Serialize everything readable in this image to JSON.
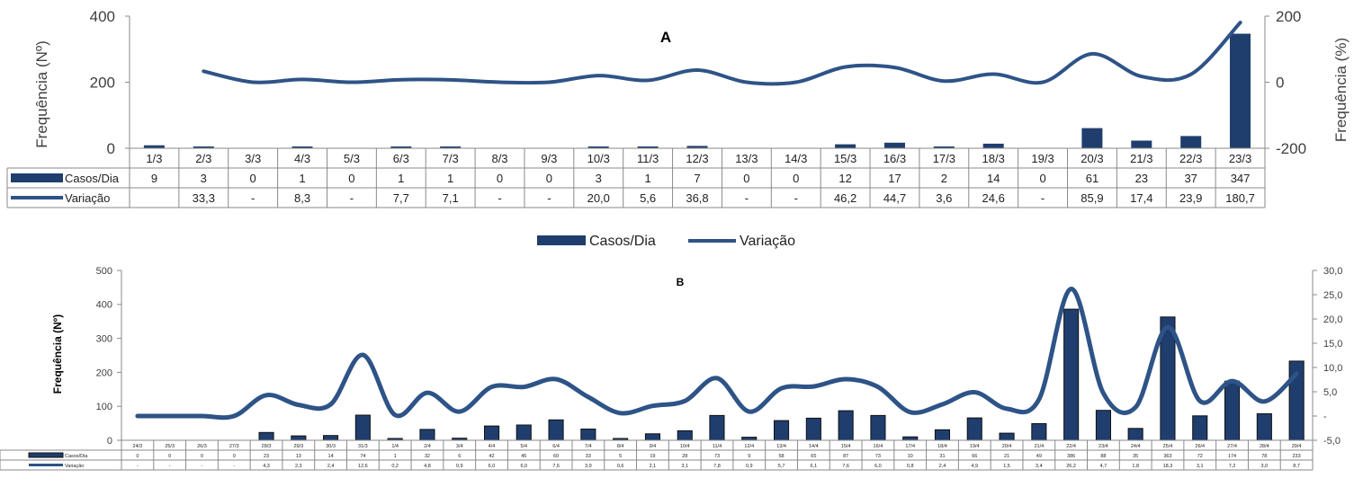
{
  "chart_data": [
    {
      "type": "bar",
      "title": "A",
      "categories": [
        "1/3",
        "2/3",
        "3/3",
        "4/3",
        "5/3",
        "6/3",
        "7/3",
        "8/3",
        "9/3",
        "10/3",
        "11/3",
        "12/3",
        "13/3",
        "14/3",
        "15/3",
        "16/3",
        "17/3",
        "18/3",
        "19/3",
        "20/3",
        "21/3",
        "22/3",
        "23/3"
      ],
      "ylabel": "Frequência (Nº)",
      "y2label": "Frequência (%)",
      "ylim": [
        0,
        400
      ],
      "y2lim": [
        -200,
        200
      ],
      "yticks": [
        "0",
        "200",
        "400"
      ],
      "y2ticks": [
        "-200",
        "0",
        "200"
      ],
      "legend_position": "bottom",
      "series": [
        {
          "name": "Casos/Dia",
          "kind": "bar",
          "axis": "left",
          "color": "#1f3e6e",
          "values": [
            9,
            3,
            0,
            1,
            0,
            1,
            1,
            0,
            0,
            3,
            1,
            7,
            0,
            0,
            12,
            17,
            2,
            14,
            0,
            61,
            23,
            37,
            347
          ],
          "labels": [
            "9",
            "3",
            "0",
            "1",
            "0",
            "1",
            "1",
            "0",
            "0",
            "3",
            "1",
            "7",
            "0",
            "0",
            "12",
            "17",
            "2",
            "14",
            "0",
            "61",
            "23",
            "37",
            "347"
          ]
        },
        {
          "name": "Variação",
          "kind": "line",
          "axis": "right",
          "color": "#2e5387",
          "values": [
            null,
            33.3,
            0,
            8.3,
            0,
            7.7,
            7.1,
            0,
            0,
            20.0,
            5.6,
            36.8,
            0,
            0,
            46.2,
            44.7,
            3.6,
            24.6,
            0,
            85.9,
            17.4,
            23.9,
            180.7
          ],
          "labels": [
            "",
            "33,3",
            "-",
            "8,3",
            "-",
            "7,7",
            "7,1",
            "-",
            "-",
            "20,0",
            "5,6",
            "36,8",
            "-",
            "-",
            "46,2",
            "44,7",
            "3,6",
            "24,6",
            "-",
            "85,9",
            "17,4",
            "23,9",
            "180,7"
          ]
        }
      ]
    },
    {
      "type": "bar",
      "title": "B",
      "categories": [
        "24/3",
        "25/3",
        "26/3",
        "27/3",
        "28/3",
        "29/3",
        "30/3",
        "31/3",
        "1/4",
        "2/4",
        "3/4",
        "4/4",
        "5/4",
        "6/4",
        "7/4",
        "8/4",
        "9/4",
        "10/4",
        "11/4",
        "12/4",
        "13/4",
        "14/4",
        "15/4",
        "16/4",
        "17/4",
        "18/4",
        "19/4",
        "20/4",
        "21/4",
        "22/4",
        "23/4",
        "24/4",
        "25/4",
        "26/4",
        "27/4",
        "28/4",
        "29/4"
      ],
      "ylabel": "Frequência (Nº)",
      "ylim": [
        0,
        500
      ],
      "y2lim": [
        -5,
        30
      ],
      "yticks": [
        "0",
        "100",
        "200",
        "300",
        "400",
        "500"
      ],
      "y2ticks": [
        "-5,0",
        "-",
        "5,0",
        "10,0",
        "15,0",
        "20,0",
        "25,0",
        "30,0"
      ],
      "series": [
        {
          "name": "Casos/Dia",
          "kind": "bar",
          "axis": "left",
          "color": "#1f3e6e",
          "values": [
            0,
            0,
            0,
            0,
            23,
            13,
            14,
            74,
            1,
            32,
            6,
            42,
            45,
            60,
            33,
            5,
            19,
            28,
            73,
            9,
            58,
            65,
            87,
            73,
            10,
            31,
            66,
            21,
            49,
            386,
            88,
            35,
            363,
            72,
            174,
            78,
            233
          ],
          "labels": [
            "0",
            "0",
            "0",
            "0",
            "23",
            "13",
            "14",
            "74",
            "1",
            "32",
            "6",
            "42",
            "45",
            "60",
            "33",
            "5",
            "19",
            "28",
            "73",
            "9",
            "58",
            "65",
            "87",
            "73",
            "10",
            "31",
            "66",
            "21",
            "49",
            "386",
            "88",
            "35",
            "363",
            "72",
            "174",
            "78",
            "233"
          ]
        },
        {
          "name": "Variação",
          "kind": "line",
          "axis": "right",
          "color": "#2e5387",
          "values": [
            0,
            0,
            0,
            0,
            4.3,
            2.3,
            2.4,
            12.6,
            0.2,
            4.8,
            0.9,
            6.0,
            6.0,
            7.6,
            3.9,
            0.6,
            2.1,
            3.1,
            7.8,
            0.9,
            5.7,
            6.1,
            7.6,
            6.0,
            0.8,
            2.4,
            4.9,
            1.5,
            3.4,
            26.2,
            4.7,
            1.8,
            18.3,
            3.1,
            7.2,
            3.0,
            8.7
          ],
          "labels": [
            "-",
            "-",
            "-",
            "-",
            "4,3",
            "2,3",
            "2,4",
            "12,6",
            "0,2",
            "4,8",
            "0,9",
            "6,0",
            "6,0",
            "7,6",
            "3,9",
            "0,6",
            "2,1",
            "3,1",
            "7,8",
            "0,9",
            "5,7",
            "6,1",
            "7,6",
            "6,0",
            "0,8",
            "2,4",
            "4,9",
            "1,5",
            "3,4",
            "26,2",
            "4,7",
            "1,8",
            "18,3",
            "3,1",
            "7,2",
            "3,0",
            "8,7"
          ]
        }
      ]
    }
  ]
}
